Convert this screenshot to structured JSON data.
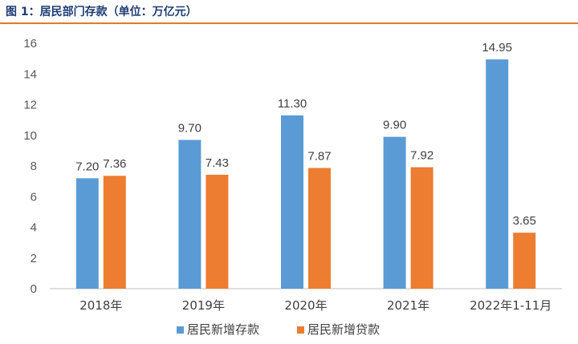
{
  "title": "图 1：居民部门存款（单位：万亿元）",
  "colors": {
    "series1": "#5b9bd5",
    "series2": "#ed7d31",
    "title": "#1f3d73",
    "rule": "#e07b2a"
  },
  "chart_data": {
    "type": "bar",
    "categories": [
      "2018年",
      "2019年",
      "2020年",
      "2021年",
      "2022年1-11月"
    ],
    "series": [
      {
        "name": "居民新增存款",
        "values": [
          7.2,
          9.7,
          11.3,
          9.9,
          14.95
        ],
        "labels": [
          "7.20",
          "9.70",
          "11.30",
          "9.90",
          "14.95"
        ]
      },
      {
        "name": "居民新增贷款",
        "values": [
          7.36,
          7.43,
          7.87,
          7.92,
          3.65
        ],
        "labels": [
          "7.36",
          "7.43",
          "7.87",
          "7.92",
          "3.65"
        ]
      }
    ],
    "yticks": [
      "0",
      "2",
      "4",
      "6",
      "8",
      "10",
      "12",
      "14",
      "16"
    ],
    "ylim": [
      0,
      16
    ],
    "legend": "bottom",
    "grid": false
  }
}
